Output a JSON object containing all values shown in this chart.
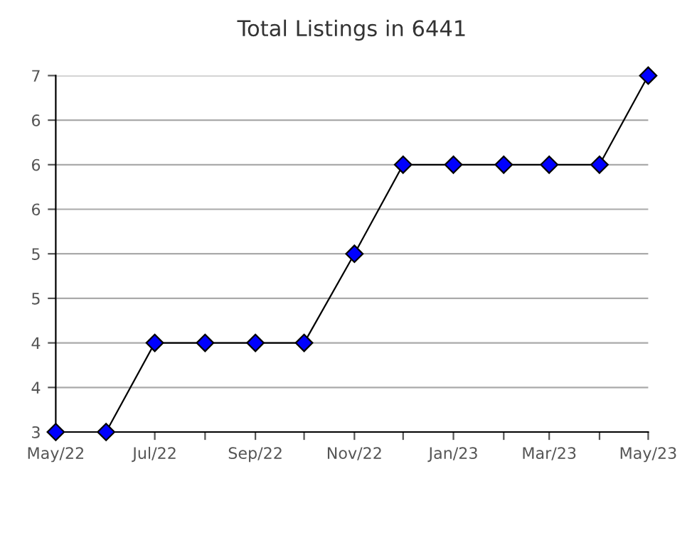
{
  "chart_data": {
    "type": "line",
    "title": "Total Listings in 6441",
    "x": [
      "2022-05",
      "2022-06",
      "2022-07",
      "2022-08",
      "2022-09",
      "2022-10",
      "2022-11",
      "2022-12",
      "2023-01",
      "2023-02",
      "2023-03",
      "2023-04",
      "2023-05"
    ],
    "series": [
      {
        "color": "#0000ff",
        "values": [
          3,
          3,
          4,
          4,
          4,
          4,
          5,
          6,
          6,
          6,
          6,
          6,
          7
        ]
      }
    ],
    "marker": "diamond",
    "line_style": "solid",
    "grid": "y",
    "ylim": [
      3,
      7
    ],
    "yticks": [
      {
        "value": 3,
        "label": "3"
      },
      {
        "value": 3.5,
        "label": "4"
      },
      {
        "value": 4,
        "label": "4"
      },
      {
        "value": 4.5,
        "label": "5"
      },
      {
        "value": 5,
        "label": "5"
      },
      {
        "value": 5.5,
        "label": "6"
      },
      {
        "value": 6,
        "label": "6"
      },
      {
        "value": 6.5,
        "label": "6"
      },
      {
        "value": 7,
        "label": "7"
      }
    ],
    "xlim": [
      "2022-05",
      "2023-05"
    ],
    "xticks": [
      {
        "value": "2022-05",
        "label": "May/22"
      },
      {
        "value": "2022-06",
        "label": null
      },
      {
        "value": "2022-07",
        "label": "Jul/22"
      },
      {
        "value": "2022-08",
        "label": null
      },
      {
        "value": "2022-09",
        "label": "Sep/22"
      },
      {
        "value": "2022-10",
        "label": null
      },
      {
        "value": "2022-11",
        "label": "Nov/22"
      },
      {
        "value": "2022-12",
        "label": null
      },
      {
        "value": "2023-01",
        "label": "Jan/23"
      },
      {
        "value": "2023-02",
        "label": null
      },
      {
        "value": "2023-03",
        "label": "Mar/23"
      },
      {
        "value": "2023-04",
        "label": null
      },
      {
        "value": "2023-05",
        "label": "May/23"
      }
    ]
  }
}
